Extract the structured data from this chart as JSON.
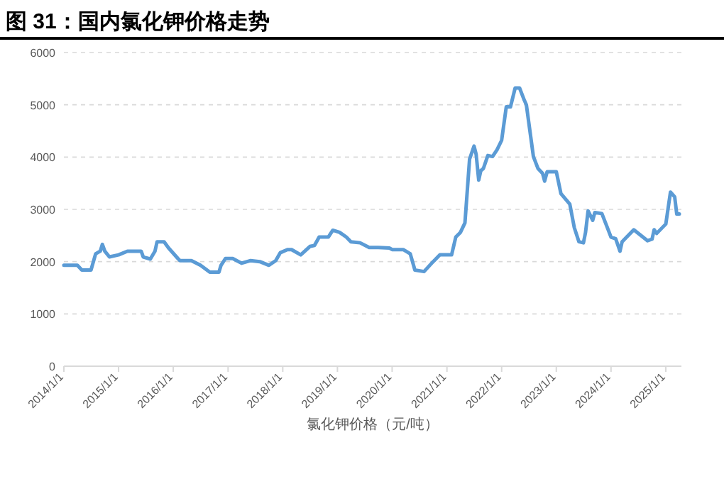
{
  "chart_data": {
    "type": "line",
    "title": "图 31：国内氯化钾价格走势",
    "xlabel": "氯化钾价格（元/吨）",
    "series": [
      {
        "color": "#5b9bd5",
        "x": [
          "2014-01-01",
          "2014-04-01",
          "2014-05-01",
          "2014-07-01",
          "2014-08-01",
          "2014-09-01",
          "2014-09-15",
          "2014-10-01",
          "2014-11-01",
          "2015-01-01",
          "2015-03-01",
          "2015-06-01",
          "2015-06-15",
          "2015-08-01",
          "2015-09-01",
          "2015-09-15",
          "2015-11-01",
          "2015-12-01",
          "2016-02-01",
          "2016-02-15",
          "2016-05-01",
          "2016-07-01",
          "2016-09-01",
          "2016-11-01",
          "2016-11-15",
          "2016-12-15",
          "2017-02-01",
          "2017-04-01",
          "2017-06-01",
          "2017-08-01",
          "2017-10-01",
          "2017-11-15",
          "2017-12-15",
          "2018-02-01",
          "2018-03-01",
          "2018-05-01",
          "2018-07-01",
          "2018-08-01",
          "2018-09-01",
          "2018-11-01",
          "2018-12-01",
          "2019-01-15",
          "2019-03-01",
          "2019-04-01",
          "2019-06-01",
          "2019-08-01",
          "2019-10-01",
          "2019-12-15",
          "2020-01-01",
          "2020-03-15",
          "2020-05-01",
          "2020-06-01",
          "2020-08-01",
          "2020-10-01",
          "2020-11-15",
          "2021-02-01",
          "2021-03-01",
          "2021-04-01",
          "2021-05-01",
          "2021-06-01",
          "2021-07-01",
          "2021-07-15",
          "2021-08-01",
          "2021-08-15",
          "2021-09-01",
          "2021-10-01",
          "2021-11-01",
          "2021-12-01",
          "2022-01-01",
          "2022-02-01",
          "2022-03-01",
          "2022-04-01",
          "2022-05-01",
          "2022-06-01",
          "2022-06-15",
          "2022-08-01",
          "2022-09-01",
          "2022-10-01",
          "2022-10-15",
          "2022-11-01",
          "2023-01-01",
          "2023-02-01",
          "2023-04-01",
          "2023-05-01",
          "2023-06-01",
          "2023-07-01",
          "2023-07-15",
          "2023-08-01",
          "2023-09-01",
          "2023-09-15",
          "2023-11-01",
          "2023-12-01",
          "2024-01-01",
          "2024-02-01",
          "2024-03-01",
          "2024-03-15",
          "2024-04-01",
          "2024-06-01",
          "2024-08-01",
          "2024-09-01",
          "2024-10-01",
          "2024-10-15",
          "2024-11-01",
          "2025-01-01",
          "2025-02-01",
          "2025-03-01",
          "2025-03-15",
          "2025-04-01"
        ],
        "values": [
          1930,
          1930,
          1840,
          1840,
          2150,
          2200,
          2330,
          2200,
          2090,
          2130,
          2200,
          2200,
          2090,
          2050,
          2200,
          2380,
          2380,
          2260,
          2060,
          2020,
          2020,
          1930,
          1800,
          1800,
          1930,
          2060,
          2060,
          1970,
          2020,
          2000,
          1930,
          2020,
          2170,
          2230,
          2230,
          2130,
          2290,
          2310,
          2470,
          2470,
          2600,
          2560,
          2470,
          2380,
          2360,
          2270,
          2270,
          2260,
          2230,
          2230,
          2150,
          1840,
          1810,
          2000,
          2130,
          2130,
          2470,
          2560,
          2740,
          3960,
          4210,
          4050,
          3560,
          3740,
          3780,
          4030,
          4010,
          4140,
          4320,
          4960,
          4960,
          5320,
          5320,
          5090,
          5000,
          4010,
          3780,
          3690,
          3540,
          3720,
          3720,
          3300,
          3100,
          2650,
          2380,
          2360,
          2560,
          2970,
          2790,
          2940,
          2920,
          2700,
          2470,
          2440,
          2200,
          2380,
          2430,
          2610,
          2470,
          2400,
          2430,
          2610,
          2540,
          2720,
          3330,
          3240,
          2910,
          2910
        ]
      }
    ],
    "xlim": [
      "2014-01-01",
      "2025-04-15"
    ],
    "xticks": [
      {
        "value": "2014-01-01",
        "label": "2014/1/1"
      },
      {
        "value": "2015-01-01",
        "label": "2015/1/1"
      },
      {
        "value": "2016-01-01",
        "label": "2016/1/1"
      },
      {
        "value": "2017-01-01",
        "label": "2017/1/1"
      },
      {
        "value": "2018-01-01",
        "label": "2018/1/1"
      },
      {
        "value": "2019-01-01",
        "label": "2019/1/1"
      },
      {
        "value": "2020-01-01",
        "label": "2020/1/1"
      },
      {
        "value": "2021-01-01",
        "label": "2021/1/1"
      },
      {
        "value": "2022-01-01",
        "label": "2022/1/1"
      },
      {
        "value": "2023-01-01",
        "label": "2023/1/1"
      },
      {
        "value": "2024-01-01",
        "label": "2024/1/1"
      },
      {
        "value": "2025-01-01",
        "label": "2025/1/1"
      }
    ],
    "ylim": [
      0,
      6000
    ],
    "yticks": [
      0,
      1000,
      2000,
      3000,
      4000,
      5000,
      6000
    ],
    "grid": "y",
    "marker": "none",
    "line_style": "solid"
  }
}
